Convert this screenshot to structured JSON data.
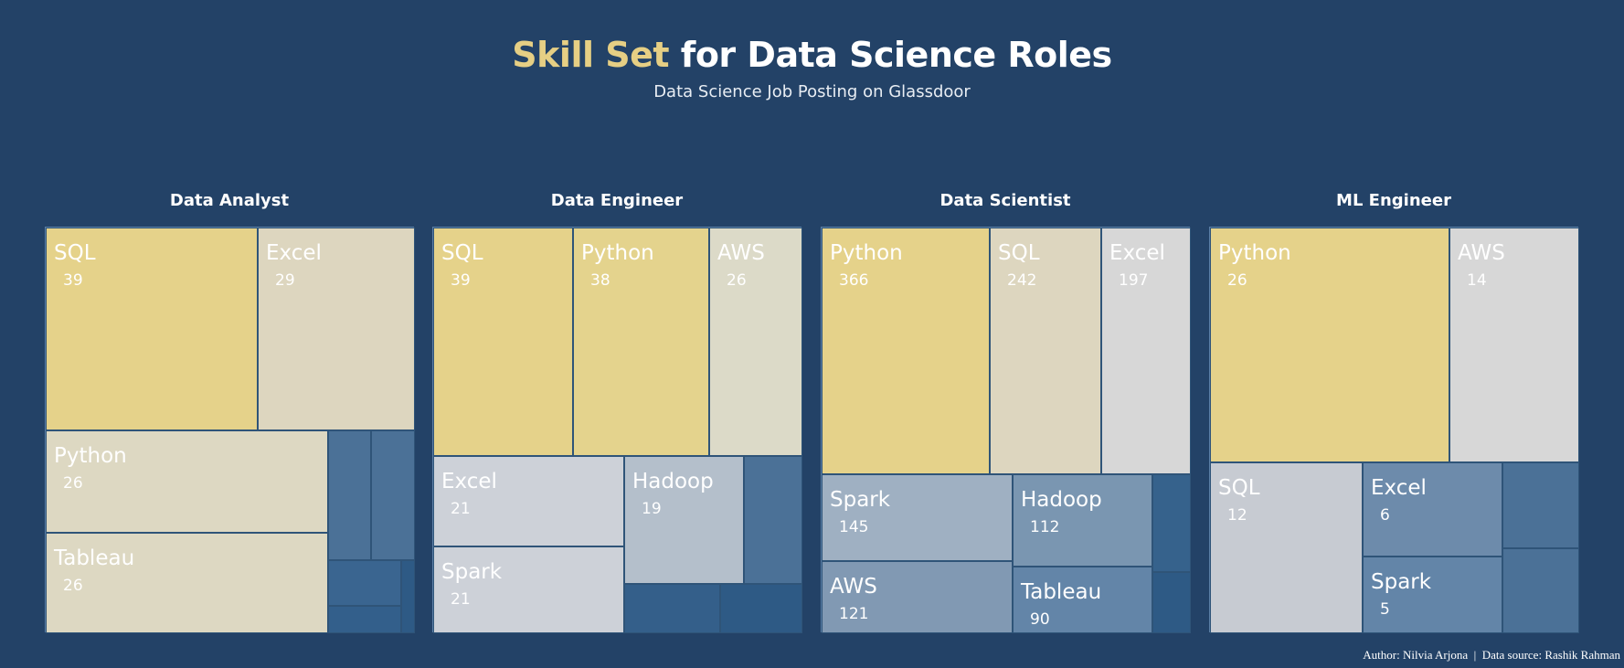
{
  "header": {
    "title_highlight": "Skill Set",
    "title_rest": " for Data Science Roles",
    "subtitle": "Data Science Job Posting on Glassdoor"
  },
  "footer": {
    "author": "Author: Nilvia Arjona",
    "separator": "|",
    "source": "Data source: Rashik Rahman"
  },
  "colors": {
    "high": "#e5d28a",
    "mid_high": "#ddd6bf",
    "neutral": "#d7d7d7",
    "light": "#cdd1d8",
    "mid": "#9fb0c2",
    "mid_low": "#7a96b1",
    "low": "#4b7197",
    "lowest": "#2e5a85",
    "background": "#234267"
  },
  "chart_data": [
    {
      "type": "treemap",
      "title": "Data Analyst",
      "items": [
        {
          "label": "SQL",
          "value": 39,
          "show_label": true,
          "color": "#e5d28a"
        },
        {
          "label": "Excel",
          "value": 29,
          "show_label": true,
          "color": "#ddd6bf"
        },
        {
          "label": "Python",
          "value": 26,
          "show_label": true,
          "color": "#ddd8c2"
        },
        {
          "label": "Tableau",
          "value": 26,
          "show_label": true,
          "color": "#ddd8c2"
        },
        {
          "label": "",
          "value": 4,
          "show_label": false,
          "color": "#4b7197"
        },
        {
          "label": "",
          "value": 4,
          "show_label": false,
          "color": "#4b7197"
        },
        {
          "label": "",
          "value": 2,
          "show_label": false,
          "color": "#3a6590"
        },
        {
          "label": "",
          "value": 1.5,
          "show_label": false,
          "color": "#335f8b"
        },
        {
          "label": "",
          "value": 0.6,
          "show_label": false,
          "color": "#2e5a85"
        }
      ]
    },
    {
      "type": "treemap",
      "title": "Data Engineer",
      "items": [
        {
          "label": "SQL",
          "value": 39,
          "show_label": true,
          "color": "#e5d28a"
        },
        {
          "label": "Python",
          "value": 38,
          "show_label": true,
          "color": "#e4d38d"
        },
        {
          "label": "AWS",
          "value": 26,
          "show_label": true,
          "color": "#dcdac8"
        },
        {
          "label": "Excel",
          "value": 21,
          "show_label": true,
          "color": "#cdd1d8"
        },
        {
          "label": "Spark",
          "value": 21,
          "show_label": true,
          "color": "#cdd1d8"
        },
        {
          "label": "Hadoop",
          "value": 19,
          "show_label": true,
          "color": "#b4bfcb"
        },
        {
          "label": "",
          "value": 9,
          "show_label": false,
          "color": "#4b7197"
        },
        {
          "label": "",
          "value": 6,
          "show_label": false,
          "color": "#345f8a"
        },
        {
          "label": "",
          "value": 5,
          "show_label": false,
          "color": "#2e5a85"
        }
      ]
    },
    {
      "type": "treemap",
      "title": "Data Scientist",
      "items": [
        {
          "label": "Python",
          "value": 366,
          "show_label": true,
          "color": "#e5d28a"
        },
        {
          "label": "SQL",
          "value": 242,
          "show_label": true,
          "color": "#ddd6bf"
        },
        {
          "label": "Excel",
          "value": 197,
          "show_label": true,
          "color": "#d7d7d7"
        },
        {
          "label": "Spark",
          "value": 145,
          "show_label": true,
          "color": "#9fb0c2"
        },
        {
          "label": "AWS",
          "value": 121,
          "show_label": true,
          "color": "#8199b3"
        },
        {
          "label": "Hadoop",
          "value": 112,
          "show_label": true,
          "color": "#7a96b1"
        },
        {
          "label": "Tableau",
          "value": 90,
          "show_label": true,
          "color": "#6385a8"
        },
        {
          "label": "",
          "value": 45,
          "show_label": false,
          "color": "#36628c"
        },
        {
          "label": "",
          "value": 30,
          "show_label": false,
          "color": "#2e5a85"
        }
      ]
    },
    {
      "type": "treemap",
      "title": "ML Engineer",
      "items": [
        {
          "label": "Python",
          "value": 26,
          "show_label": true,
          "color": "#e5d28a"
        },
        {
          "label": "AWS",
          "value": 14,
          "show_label": true,
          "color": "#d7d7d7"
        },
        {
          "label": "SQL",
          "value": 12,
          "show_label": true,
          "color": "#c7cbd2"
        },
        {
          "label": "Excel",
          "value": 6,
          "show_label": true,
          "color": "#6d8bab"
        },
        {
          "label": "Spark",
          "value": 5,
          "show_label": true,
          "color": "#6385a8"
        },
        {
          "label": "",
          "value": 3,
          "show_label": false,
          "color": "#4b7197"
        },
        {
          "label": "",
          "value": 3,
          "show_label": false,
          "color": "#4b7197"
        }
      ]
    }
  ]
}
